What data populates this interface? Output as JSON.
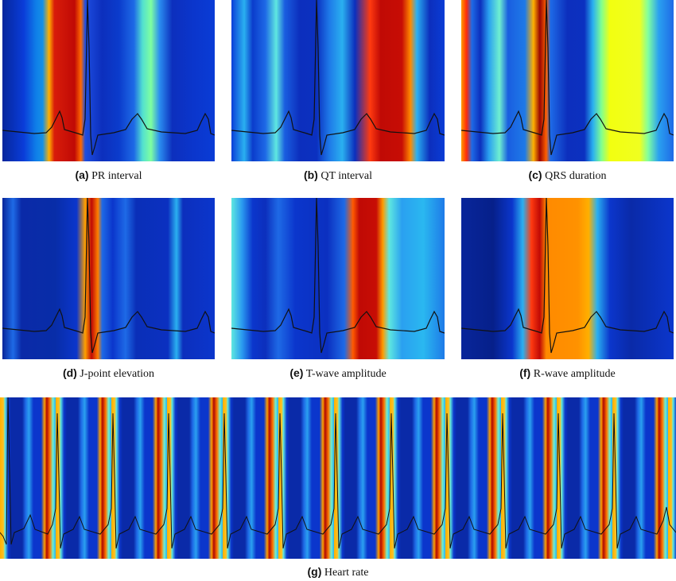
{
  "panels": [
    {
      "id": "a",
      "tag": "(a)",
      "label": "PR interval"
    },
    {
      "id": "b",
      "tag": "(b)",
      "label": "QT interval"
    },
    {
      "id": "c",
      "tag": "(c)",
      "label": "QRS duration"
    },
    {
      "id": "d",
      "tag": "(d)",
      "label": "J-point elevation"
    },
    {
      "id": "e",
      "tag": "(e)",
      "label": "T-wave amplitude"
    },
    {
      "id": "f",
      "tag": "(f)",
      "label": "R-wave amplitude"
    },
    {
      "id": "g",
      "tag": "(g)",
      "label": "Heart rate"
    }
  ],
  "colormap": "jet",
  "trace_color": "#111111"
}
